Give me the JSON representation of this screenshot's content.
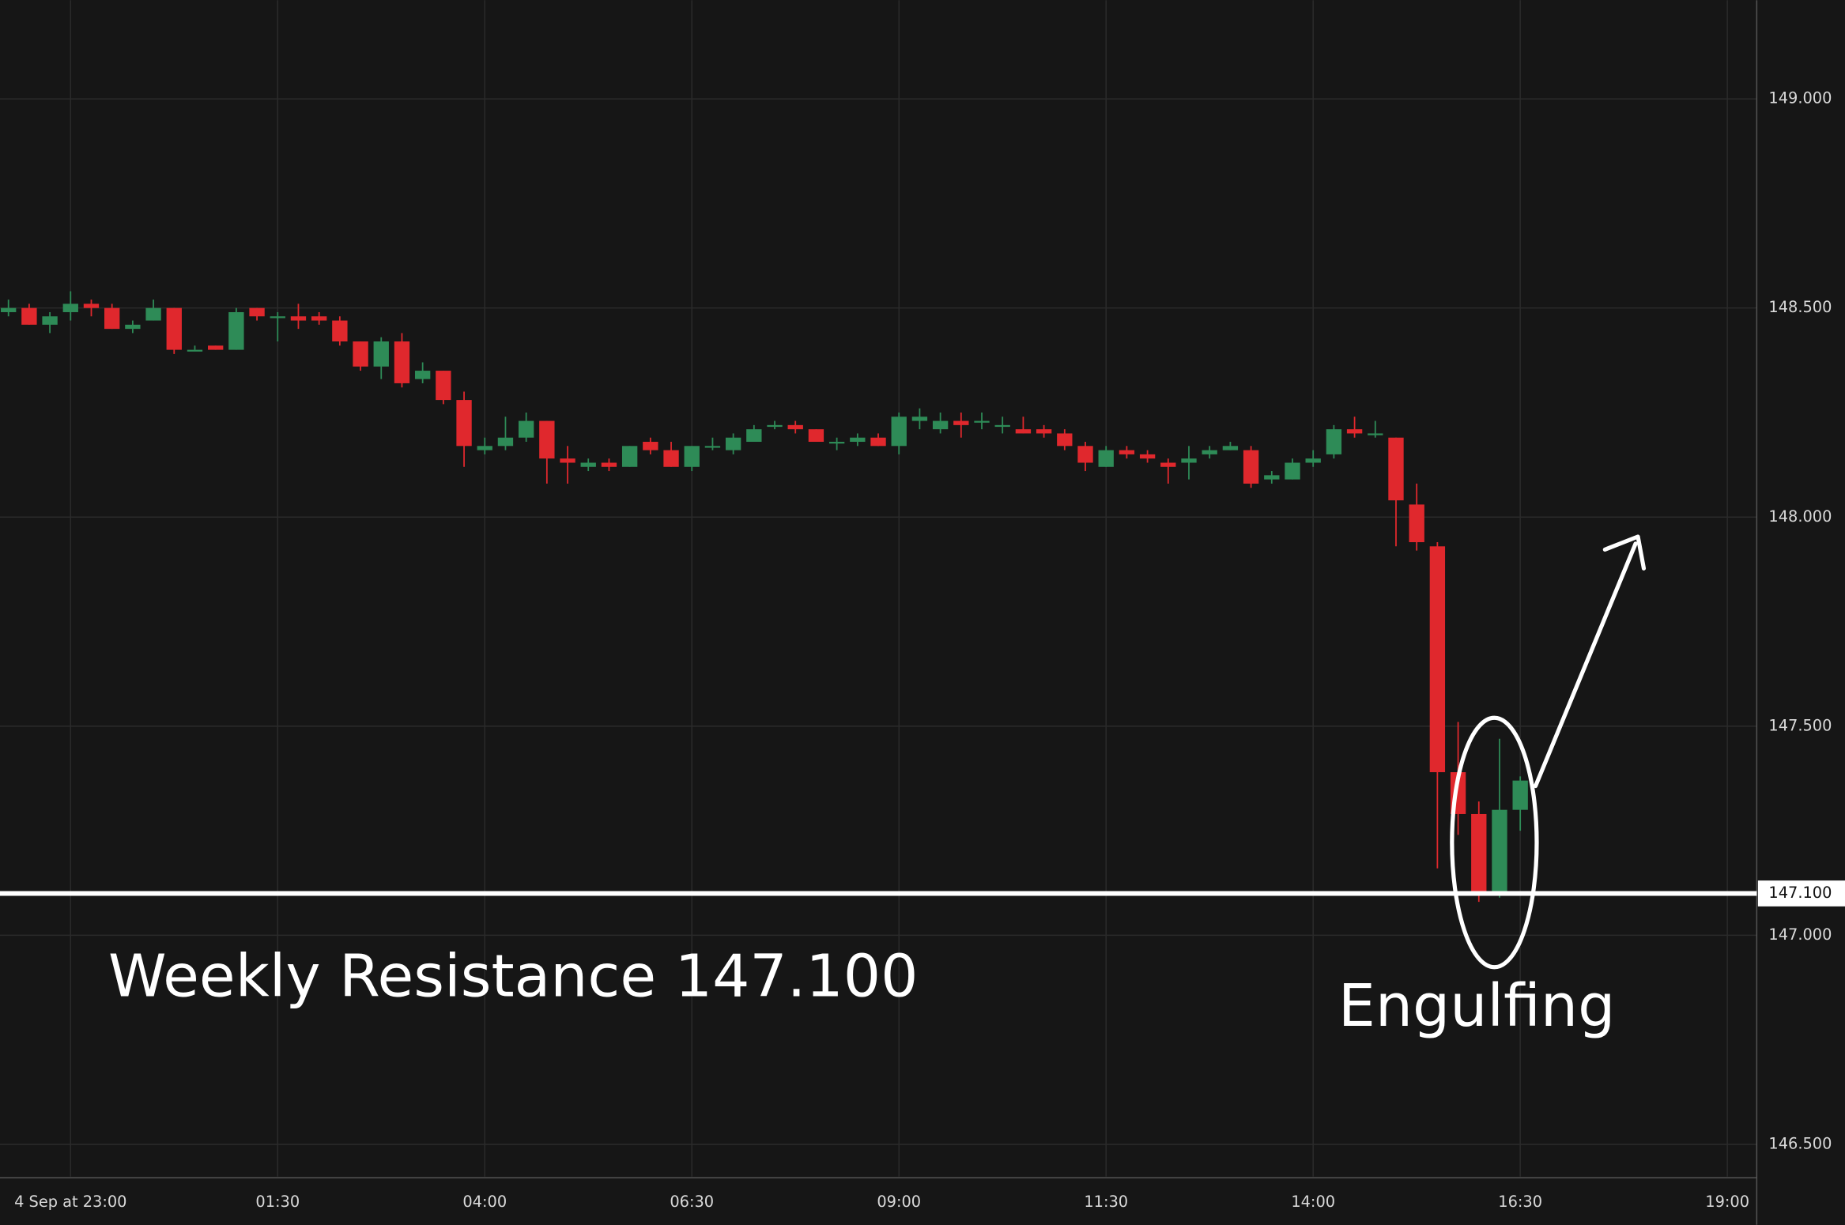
{
  "chart_data": {
    "type": "candlestick",
    "x": [
      22.25,
      22.5,
      22.75,
      23,
      23.25,
      23.5,
      23.75,
      24,
      24.25,
      24.5,
      24.75,
      25,
      25.25,
      25.5,
      25.75,
      26,
      26.25,
      26.5,
      26.75,
      27,
      27.25,
      27.5,
      27.75,
      28,
      28.25,
      28.5,
      28.75,
      29,
      29.25,
      29.5,
      29.75,
      30,
      30.25,
      30.5,
      30.75,
      31,
      31.25,
      31.5,
      31.75,
      32,
      32.25,
      32.5,
      32.75,
      33,
      33.25,
      33.5,
      33.75,
      34,
      34.25,
      34.5,
      34.75,
      35,
      35.25,
      35.5,
      35.75,
      36,
      36.25,
      36.5,
      36.75,
      37,
      37.25,
      37.5,
      37.75,
      38,
      38.25,
      38.5,
      38.75,
      39,
      39.25,
      39.5,
      39.75,
      40,
      40.25,
      40.5
    ],
    "open": [
      148.49,
      148.5,
      148.46,
      148.49,
      148.51,
      148.5,
      148.45,
      148.47,
      148.5,
      148.4,
      148.41,
      148.4,
      148.5,
      148.48,
      148.48,
      148.48,
      148.47,
      148.42,
      148.36,
      148.42,
      148.33,
      148.35,
      148.28,
      148.16,
      148.17,
      148.19,
      148.23,
      148.14,
      148.12,
      148.13,
      148.12,
      148.18,
      148.16,
      148.12,
      148.17,
      148.16,
      148.18,
      148.22,
      148.22,
      148.21,
      148.18,
      148.18,
      148.19,
      148.17,
      148.23,
      148.21,
      148.23,
      148.23,
      148.22,
      148.21,
      148.21,
      148.2,
      148.17,
      148.12,
      148.16,
      148.15,
      148.13,
      148.13,
      148.15,
      148.16,
      148.16,
      148.09,
      148.09,
      148.13,
      148.15,
      148.21,
      148.2,
      148.19,
      148.03,
      147.93,
      147.39,
      147.29,
      147.1,
      147.3
    ],
    "high": [
      148.52,
      148.51,
      148.49,
      148.54,
      148.52,
      148.51,
      148.47,
      148.52,
      148.5,
      148.41,
      148.41,
      148.5,
      148.5,
      148.49,
      148.51,
      148.49,
      148.48,
      148.42,
      148.43,
      148.44,
      148.37,
      148.35,
      148.3,
      148.19,
      148.24,
      148.25,
      148.23,
      148.17,
      148.14,
      148.14,
      148.17,
      148.19,
      148.18,
      148.17,
      148.19,
      148.2,
      148.22,
      148.23,
      148.23,
      148.21,
      148.19,
      148.2,
      148.2,
      148.25,
      148.26,
      148.25,
      148.25,
      148.25,
      148.24,
      148.24,
      148.22,
      148.21,
      148.18,
      148.17,
      148.17,
      148.16,
      148.14,
      148.17,
      148.17,
      148.18,
      148.17,
      148.11,
      148.14,
      148.16,
      148.22,
      148.24,
      148.23,
      148.19,
      148.08,
      147.94,
      147.51,
      147.32,
      147.47,
      147.38
    ],
    "low": [
      148.48,
      148.46,
      148.44,
      148.47,
      148.48,
      148.45,
      148.44,
      148.47,
      148.39,
      148.4,
      148.4,
      148.4,
      148.47,
      148.42,
      148.45,
      148.46,
      148.41,
      148.35,
      148.33,
      148.31,
      148.32,
      148.27,
      148.12,
      148.15,
      148.16,
      148.18,
      148.08,
      148.08,
      148.11,
      148.11,
      148.12,
      148.15,
      148.12,
      148.11,
      148.16,
      148.15,
      148.18,
      148.21,
      148.2,
      148.18,
      148.16,
      148.17,
      148.17,
      148.15,
      148.21,
      148.2,
      148.19,
      148.21,
      148.2,
      148.2,
      148.19,
      148.16,
      148.11,
      148.12,
      148.14,
      148.13,
      148.08,
      148.09,
      148.14,
      148.16,
      148.07,
      148.08,
      148.09,
      148.12,
      148.14,
      148.19,
      148.19,
      147.93,
      147.92,
      147.16,
      147.24,
      147.08,
      147.09,
      147.25
    ],
    "close": [
      148.5,
      148.46,
      148.48,
      148.51,
      148.5,
      148.45,
      148.46,
      148.5,
      148.4,
      148.4,
      148.4,
      148.49,
      148.48,
      148.48,
      148.47,
      148.47,
      148.42,
      148.36,
      148.42,
      148.32,
      148.35,
      148.28,
      148.17,
      148.17,
      148.19,
      148.23,
      148.14,
      148.13,
      148.13,
      148.12,
      148.17,
      148.16,
      148.12,
      148.17,
      148.17,
      148.19,
      148.21,
      148.22,
      148.21,
      148.18,
      148.18,
      148.19,
      148.17,
      148.24,
      148.24,
      148.23,
      148.22,
      148.23,
      148.22,
      148.2,
      148.2,
      148.17,
      148.13,
      148.16,
      148.15,
      148.14,
      148.12,
      148.14,
      148.16,
      148.17,
      148.08,
      148.1,
      148.13,
      148.14,
      148.21,
      148.2,
      148.2,
      148.04,
      147.94,
      147.39,
      147.29,
      147.1,
      147.3,
      147.37
    ],
    "up_color": "#2e8b57",
    "down_color": "#e0282d",
    "xlim": [
      22.148,
      43.355
    ],
    "xticks": [
      {
        "value": 23,
        "label": "4 Sep at 23:00"
      },
      {
        "value": 25.5,
        "label": "01:30"
      },
      {
        "value": 28,
        "label": "04:00"
      },
      {
        "value": 30.5,
        "label": "06:30"
      },
      {
        "value": 33,
        "label": "09:00"
      },
      {
        "value": 35.5,
        "label": "11:30"
      },
      {
        "value": 38,
        "label": "14:00"
      },
      {
        "value": 40.5,
        "label": "16:30"
      },
      {
        "value": 43,
        "label": "19:00"
      }
    ],
    "ylim": [
      146.423,
      149.236
    ],
    "yticks": [
      {
        "value": 146.5,
        "label": "146.500"
      },
      {
        "value": 147,
        "label": "147.000"
      },
      {
        "value": 147.5,
        "label": "147.500"
      },
      {
        "value": 148,
        "label": "148.000"
      },
      {
        "value": 148.5,
        "label": "148.500"
      },
      {
        "value": 149,
        "label": "149.000"
      }
    ],
    "grid": true,
    "hline": {
      "value": 147.1,
      "label": "147.100"
    },
    "annotations": [
      "Weekly Resistance 147.100",
      "Engulfing"
    ]
  }
}
